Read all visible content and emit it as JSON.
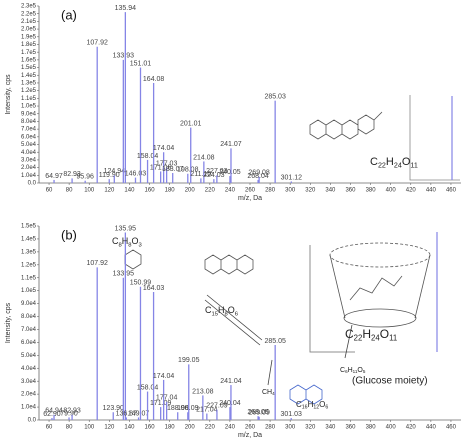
{
  "chart_data": [
    {
      "type": "bar",
      "panel_label": "(a)",
      "ylabel": "Intensity, cps",
      "xlabel": "m/z, Da",
      "color": "#8585e6",
      "xlim": [
        50,
        470
      ],
      "xticks": [
        60,
        80,
        100,
        120,
        140,
        160,
        180,
        200,
        220,
        240,
        260,
        280,
        300,
        320,
        340,
        360,
        380,
        400,
        420,
        440,
        460
      ],
      "ylim": [
        0,
        230000
      ],
      "yticks": [
        {
          "value": 0,
          "label": "0.0"
        },
        {
          "value": 10000,
          "label": "1.0e4"
        },
        {
          "value": 20000,
          "label": "2.0e4"
        },
        {
          "value": 30000,
          "label": "3.0e4"
        },
        {
          "value": 40000,
          "label": "4.0e4"
        },
        {
          "value": 50000,
          "label": "5.0e4"
        },
        {
          "value": 60000,
          "label": "6.0e4"
        },
        {
          "value": 70000,
          "label": "7.0e4"
        },
        {
          "value": 80000,
          "label": "8.0e4"
        },
        {
          "value": 90000,
          "label": "9.0e4"
        },
        {
          "value": 100000,
          "label": "1.0e5"
        },
        {
          "value": 110000,
          "label": "1.1e5"
        },
        {
          "value": 120000,
          "label": "1.2e5"
        },
        {
          "value": 130000,
          "label": "1.3e5"
        },
        {
          "value": 140000,
          "label": "1.4e5"
        },
        {
          "value": 150000,
          "label": "1.5e5"
        },
        {
          "value": 160000,
          "label": "1.6e5"
        },
        {
          "value": 170000,
          "label": "1.7e5"
        },
        {
          "value": 180000,
          "label": "1.8e5"
        },
        {
          "value": 190000,
          "label": "1.9e5"
        },
        {
          "value": 200000,
          "label": "2.0e5"
        },
        {
          "value": 210000,
          "label": "2.1e5"
        },
        {
          "value": 220000,
          "label": "2.2e5"
        },
        {
          "value": 230000,
          "label": "2.3e5"
        }
      ],
      "x": [
        64.97,
        82.93,
        95.96,
        107.92,
        119.9,
        124.94,
        133.93,
        135.94,
        146.03,
        151.01,
        158.04,
        164.08,
        171.06,
        174.04,
        177.03,
        183.07,
        198.08,
        201.01,
        211.1,
        214.08,
        224.03,
        227.03,
        240.05,
        241.07,
        268.04,
        269.08,
        285.03,
        301.12
      ],
      "x_labels": [
        "64.97",
        "82.93",
        "95.96",
        "107.92",
        "119.90",
        "124.94",
        "133.93",
        "135.94",
        "146.03",
        "151.01",
        "158.04",
        "164.08",
        "171.06",
        "174.04",
        "177.03",
        "183.07",
        "198.08",
        "201.01",
        "211.10",
        "214.08",
        "224.03",
        "227.03",
        "240.05",
        "241.07",
        "268.04",
        "269.08",
        "285.03",
        "301.12"
      ],
      "values": [
        4000,
        6000,
        3000,
        177000,
        5000,
        10000,
        160000,
        222000,
        7000,
        150000,
        30000,
        130000,
        15000,
        40000,
        20000,
        13000,
        12000,
        72000,
        6000,
        28000,
        5000,
        10000,
        9000,
        45000,
        4000,
        8000,
        107000,
        2000
      ],
      "annotations": [
        {
          "parts": [
            "C",
            "22",
            "H",
            "24",
            "O",
            "11"
          ]
        }
      ]
    },
    {
      "type": "bar",
      "panel_label": "(b)",
      "ylabel": "Intensity, cps",
      "xlabel": "m/z, Da",
      "color": "#8585e6",
      "xlim": [
        50,
        470
      ],
      "xticks": [
        60,
        80,
        100,
        120,
        140,
        160,
        180,
        200,
        220,
        240,
        260,
        280,
        300,
        320,
        340,
        360,
        380,
        400,
        420,
        440,
        460
      ],
      "ylim": [
        0,
        150000
      ],
      "yticks": [
        {
          "value": 0,
          "label": "0.0"
        },
        {
          "value": 10000,
          "label": "1.0e4"
        },
        {
          "value": 20000,
          "label": "2.0e4"
        },
        {
          "value": 30000,
          "label": "3.0e4"
        },
        {
          "value": 40000,
          "label": "4.0e4"
        },
        {
          "value": 50000,
          "label": "5.0e4"
        },
        {
          "value": 60000,
          "label": "6.0e4"
        },
        {
          "value": 70000,
          "label": "7.0e4"
        },
        {
          "value": 80000,
          "label": "8.0e4"
        },
        {
          "value": 90000,
          "label": "9.0e4"
        },
        {
          "value": 100000,
          "label": "1.0e5"
        },
        {
          "value": 110000,
          "label": "1.1e5"
        },
        {
          "value": 120000,
          "label": "1.2e5"
        },
        {
          "value": 130000,
          "label": "1.3e5"
        },
        {
          "value": 140000,
          "label": "1.4e5"
        },
        {
          "value": 150000,
          "label": "1.5e5"
        }
      ],
      "x": [
        62.9,
        64.94,
        79.9,
        82.93,
        107.92,
        123.9,
        133.95,
        135.95,
        136.87,
        149.07,
        150.99,
        158.04,
        164.03,
        171.09,
        174.04,
        177.04,
        188.06,
        198.09,
        199.05,
        213.08,
        217.04,
        227.09,
        240.04,
        241.04,
        268.05,
        269.09,
        285.05,
        301.03
      ],
      "x_labels": [
        "62.90",
        "64.94",
        "79.90",
        "82.93",
        "107.92",
        "123.90",
        "133.95",
        "135.95",
        "136.87",
        "149.07",
        "150.99",
        "158.04",
        "164.03",
        "171.09",
        "174.04",
        "177.04",
        "188.06",
        "198.09",
        "199.05",
        "213.08",
        "217.04",
        "227.09",
        "240.04",
        "241.04",
        "268.05",
        "269.09",
        "285.05",
        "301.03"
      ],
      "values": [
        1500,
        4000,
        2000,
        4000,
        118000,
        6000,
        110000,
        145000,
        2000,
        2000,
        103000,
        22000,
        99000,
        10000,
        31000,
        14000,
        6000,
        6000,
        43000,
        19000,
        5000,
        8000,
        10000,
        27000,
        3000,
        2500,
        58000,
        1500
      ],
      "annotations": [
        {
          "parts": [
            "C",
            "8",
            "H",
            "8",
            "O",
            "3"
          ]
        },
        {
          "parts": [
            "C",
            "15",
            "H",
            "8",
            "O",
            "6"
          ]
        },
        {
          "parts": [
            "C",
            "16",
            "H",
            "12",
            "O",
            "6"
          ]
        },
        {
          "parts": [
            "CH",
            "4"
          ]
        },
        {
          "parts": [
            "C",
            "6",
            "H",
            "11",
            "O",
            "5"
          ]
        },
        {
          "text": "(Glucose moiety)"
        },
        {
          "parts": [
            "C",
            "22",
            "H",
            "24",
            "O",
            "11"
          ]
        }
      ]
    }
  ]
}
